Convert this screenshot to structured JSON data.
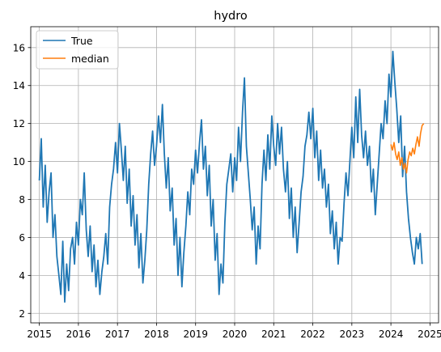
{
  "chart_data": {
    "type": "line",
    "title": "hydro",
    "xlabel": "",
    "ylabel": "",
    "xlim": [
      2014.78,
      2025.22
    ],
    "ylim": [
      1.5,
      17.1
    ],
    "x_ticks": [
      "2015",
      "2016",
      "2017",
      "2018",
      "2019",
      "2020",
      "2021",
      "2022",
      "2023",
      "2024",
      "2025"
    ],
    "y_ticks": [
      "2",
      "4",
      "6",
      "8",
      "10",
      "12",
      "14",
      "16"
    ],
    "grid": true,
    "legend_position": "upper-left",
    "series": [
      {
        "name": "True",
        "color": "#1f77b4",
        "x": [
          2015.0,
          2015.05,
          2015.1,
          2015.15,
          2015.2,
          2015.25,
          2015.3,
          2015.35,
          2015.4,
          2015.45,
          2015.5,
          2015.55,
          2015.6,
          2015.65,
          2015.7,
          2015.75,
          2015.8,
          2015.85,
          2015.9,
          2015.95,
          2016.0,
          2016.05,
          2016.1,
          2016.15,
          2016.2,
          2016.25,
          2016.3,
          2016.35,
          2016.4,
          2016.45,
          2016.5,
          2016.55,
          2016.6,
          2016.65,
          2016.7,
          2016.75,
          2016.8,
          2016.85,
          2016.9,
          2016.95,
          2017.0,
          2017.05,
          2017.1,
          2017.15,
          2017.2,
          2017.25,
          2017.3,
          2017.35,
          2017.4,
          2017.45,
          2017.5,
          2017.55,
          2017.6,
          2017.65,
          2017.7,
          2017.75,
          2017.8,
          2017.85,
          2017.9,
          2017.95,
          2018.0,
          2018.05,
          2018.1,
          2018.15,
          2018.2,
          2018.25,
          2018.3,
          2018.35,
          2018.4,
          2018.45,
          2018.5,
          2018.55,
          2018.6,
          2018.65,
          2018.7,
          2018.75,
          2018.8,
          2018.85,
          2018.9,
          2018.95,
          2019.0,
          2019.05,
          2019.1,
          2019.15,
          2019.2,
          2019.25,
          2019.3,
          2019.35,
          2019.4,
          2019.45,
          2019.5,
          2019.55,
          2019.6,
          2019.65,
          2019.7,
          2019.75,
          2019.8,
          2019.85,
          2019.9,
          2019.95,
          2020.0,
          2020.05,
          2020.1,
          2020.15,
          2020.2,
          2020.25,
          2020.3,
          2020.35,
          2020.4,
          2020.45,
          2020.5,
          2020.55,
          2020.6,
          2020.65,
          2020.7,
          2020.75,
          2020.8,
          2020.85,
          2020.9,
          2020.95,
          2021.0,
          2021.05,
          2021.1,
          2021.15,
          2021.2,
          2021.25,
          2021.3,
          2021.35,
          2021.4,
          2021.45,
          2021.5,
          2021.55,
          2021.6,
          2021.65,
          2021.7,
          2021.75,
          2021.8,
          2021.85,
          2021.9,
          2021.95,
          2022.0,
          2022.05,
          2022.1,
          2022.15,
          2022.2,
          2022.25,
          2022.3,
          2022.35,
          2022.4,
          2022.45,
          2022.5,
          2022.55,
          2022.6,
          2022.65,
          2022.7,
          2022.75,
          2022.8,
          2022.85,
          2022.9,
          2022.95,
          2023.0,
          2023.05,
          2023.1,
          2023.15,
          2023.2,
          2023.25,
          2023.3,
          2023.35,
          2023.4,
          2023.45,
          2023.5,
          2023.55,
          2023.6,
          2023.65,
          2023.7,
          2023.75,
          2023.8,
          2023.85,
          2023.9,
          2023.95,
          2024.0,
          2024.05,
          2024.1,
          2024.15,
          2024.2,
          2024.25,
          2024.3,
          2024.35,
          2024.4,
          2024.45,
          2024.5,
          2024.55,
          2024.6,
          2024.65,
          2024.7,
          2024.75,
          2024.8
        ],
        "y": [
          9.0,
          11.2,
          7.6,
          9.8,
          6.8,
          8.4,
          9.4,
          6.0,
          7.2,
          5.0,
          4.0,
          3.0,
          5.8,
          2.6,
          4.6,
          3.2,
          5.4,
          6.0,
          4.6,
          6.8,
          5.6,
          8.0,
          7.2,
          9.4,
          6.4,
          5.0,
          6.6,
          4.2,
          5.6,
          3.4,
          4.8,
          3.0,
          4.2,
          5.0,
          6.2,
          4.6,
          7.6,
          8.8,
          9.6,
          11.0,
          9.4,
          12.0,
          10.6,
          9.0,
          10.8,
          7.8,
          9.6,
          6.6,
          8.2,
          5.6,
          7.2,
          4.4,
          6.2,
          3.6,
          4.8,
          6.4,
          8.8,
          10.4,
          11.6,
          9.8,
          10.8,
          12.4,
          11.0,
          13.0,
          10.4,
          8.6,
          10.2,
          7.4,
          8.6,
          5.6,
          7.0,
          4.0,
          6.0,
          3.4,
          5.2,
          6.6,
          8.4,
          7.2,
          9.6,
          8.8,
          10.6,
          9.4,
          11.0,
          12.2,
          9.6,
          10.8,
          8.2,
          9.8,
          6.6,
          8.0,
          4.8,
          6.2,
          3.0,
          4.6,
          3.6,
          6.8,
          8.8,
          9.6,
          10.4,
          8.4,
          10.2,
          9.0,
          11.8,
          10.0,
          12.6,
          14.4,
          10.8,
          9.4,
          8.0,
          6.4,
          7.6,
          4.6,
          6.6,
          5.4,
          8.8,
          10.6,
          9.0,
          11.4,
          9.6,
          12.4,
          10.8,
          9.8,
          12.0,
          10.4,
          11.8,
          9.6,
          8.4,
          10.0,
          7.0,
          8.6,
          6.0,
          7.6,
          5.2,
          6.8,
          8.4,
          9.2,
          10.8,
          11.4,
          12.6,
          11.2,
          12.8,
          10.2,
          11.6,
          9.0,
          10.6,
          8.6,
          9.6,
          7.6,
          8.8,
          6.2,
          7.4,
          5.4,
          6.8,
          4.6,
          6.0,
          5.8,
          7.8,
          9.4,
          8.2,
          10.0,
          11.8,
          10.2,
          13.4,
          11.0,
          13.8,
          11.4,
          10.2,
          11.6,
          9.8,
          10.8,
          8.4,
          9.6,
          7.2,
          8.8,
          10.4,
          12.0,
          11.2,
          13.2,
          12.0,
          14.6,
          13.4,
          15.8,
          14.2,
          12.8,
          11.0,
          12.4,
          9.2,
          10.8,
          8.4,
          7.0,
          6.0,
          5.2,
          4.6,
          6.0,
          5.4,
          6.2,
          4.6
        ]
      },
      {
        "name": "median",
        "color": "#ff7f0e",
        "x": [
          2024.0,
          2024.04,
          2024.08,
          2024.12,
          2024.16,
          2024.2,
          2024.24,
          2024.28,
          2024.32,
          2024.36,
          2024.4,
          2024.44,
          2024.48,
          2024.52,
          2024.56,
          2024.6,
          2024.64,
          2024.68,
          2024.72,
          2024.76,
          2024.8,
          2024.84
        ],
        "y": [
          10.9,
          10.6,
          11.0,
          10.4,
          10.1,
          10.5,
          9.8,
          10.2,
          9.6,
          9.9,
          9.4,
          10.1,
          10.5,
          10.3,
          10.7,
          10.4,
          10.9,
          11.3,
          10.8,
          11.5,
          11.9,
          12.0
        ]
      }
    ]
  }
}
